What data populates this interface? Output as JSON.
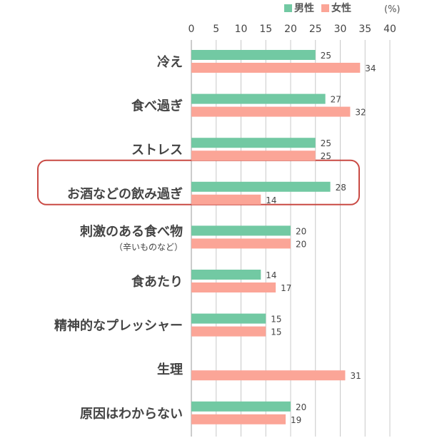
{
  "colors": {
    "male": "#72c9a3",
    "female": "#fba597",
    "grid": "#c8c8c8",
    "highlight": "#c94a44",
    "text": "#444444"
  },
  "legend": {
    "male": "男性",
    "female": "女性"
  },
  "unit": "(%)",
  "chart_data": {
    "type": "bar",
    "orientation": "horizontal",
    "categories": [
      "冷え",
      "食べ過ぎ",
      "ストレス",
      "お酒などの飲み過ぎ",
      "刺激のある食べ物",
      "食あたり",
      "精神的なプレッシャー",
      "生理",
      "原因はわからない"
    ],
    "category_notes": [
      "",
      "",
      "",
      "",
      "（辛いものなど）",
      "",
      "",
      "",
      ""
    ],
    "series": [
      {
        "name": "男性",
        "values": [
          25,
          27,
          25,
          28,
          20,
          14,
          15,
          null,
          20
        ]
      },
      {
        "name": "女性",
        "values": [
          34,
          32,
          25,
          14,
          20,
          17,
          15,
          31,
          19
        ]
      }
    ],
    "xlim": [
      0,
      40
    ],
    "xticks": [
      0,
      5,
      10,
      15,
      20,
      25,
      30,
      35,
      40
    ],
    "grid": true,
    "legend_position": "top-right",
    "highlighted_category": "お酒などの飲み過ぎ"
  }
}
